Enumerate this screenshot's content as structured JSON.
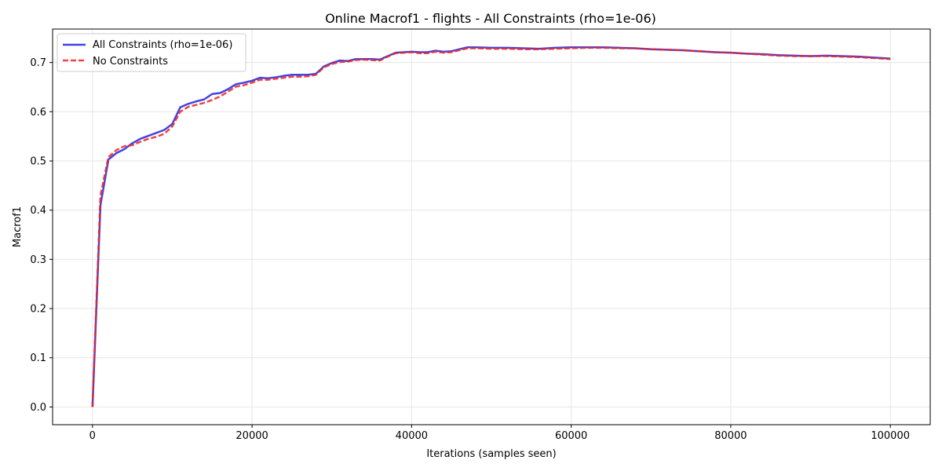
{
  "chart_data": {
    "type": "line",
    "title": "Online Macrof1 - flights - All Constraints (rho=1e-06)",
    "xlabel": "Iterations (samples seen)",
    "ylabel": "Macrof1",
    "xlim": [
      -5000,
      105000
    ],
    "ylim": [
      -0.036,
      0.768
    ],
    "xticks": [
      0,
      20000,
      40000,
      60000,
      80000,
      100000
    ],
    "xtick_labels": [
      "0",
      "20000",
      "40000",
      "60000",
      "80000",
      "100000"
    ],
    "yticks": [
      0.0,
      0.1,
      0.2,
      0.3,
      0.4,
      0.5,
      0.6,
      0.7
    ],
    "ytick_labels": [
      "0.0",
      "0.1",
      "0.2",
      "0.3",
      "0.4",
      "0.5",
      "0.6",
      "0.7"
    ],
    "grid": true,
    "legend_position": "top-left",
    "series": [
      {
        "name": "All Constraints (rho=1e-06)",
        "color": "#2222dd",
        "style": "solid",
        "x": [
          0,
          1000,
          2000,
          3000,
          4000,
          5000,
          6000,
          7000,
          8000,
          9000,
          10000,
          11000,
          12000,
          13000,
          14000,
          15000,
          16000,
          17000,
          18000,
          19000,
          20000,
          21000,
          22000,
          23000,
          24000,
          25000,
          26000,
          27000,
          28000,
          29000,
          30000,
          31000,
          32000,
          33000,
          34000,
          35000,
          36000,
          37000,
          38000,
          39000,
          40000,
          41000,
          42000,
          43000,
          44000,
          45000,
          46000,
          47000,
          48000,
          50000,
          52000,
          54000,
          56000,
          58000,
          60000,
          62000,
          64000,
          66000,
          68000,
          70000,
          72000,
          74000,
          76000,
          78000,
          80000,
          82000,
          84000,
          86000,
          88000,
          90000,
          92000,
          94000,
          96000,
          98000,
          100000
        ],
        "y": [
          0.0,
          0.41,
          0.503,
          0.516,
          0.524,
          0.536,
          0.545,
          0.551,
          0.557,
          0.563,
          0.575,
          0.609,
          0.616,
          0.621,
          0.625,
          0.636,
          0.638,
          0.646,
          0.656,
          0.659,
          0.663,
          0.669,
          0.668,
          0.67,
          0.673,
          0.675,
          0.675,
          0.675,
          0.677,
          0.692,
          0.699,
          0.704,
          0.703,
          0.707,
          0.707,
          0.707,
          0.706,
          0.713,
          0.72,
          0.721,
          0.722,
          0.721,
          0.721,
          0.724,
          0.722,
          0.723,
          0.727,
          0.731,
          0.731,
          0.73,
          0.73,
          0.729,
          0.728,
          0.73,
          0.731,
          0.731,
          0.731,
          0.73,
          0.729,
          0.727,
          0.726,
          0.725,
          0.723,
          0.721,
          0.72,
          0.718,
          0.717,
          0.715,
          0.714,
          0.713,
          0.714,
          0.713,
          0.712,
          0.71,
          0.708
        ]
      },
      {
        "name": "No Constraints",
        "color": "#ee2222",
        "style": "dashed",
        "x": [
          0,
          1000,
          2000,
          3000,
          4000,
          5000,
          6000,
          7000,
          8000,
          9000,
          10000,
          11000,
          12000,
          13000,
          14000,
          15000,
          16000,
          17000,
          18000,
          19000,
          20000,
          21000,
          22000,
          23000,
          24000,
          25000,
          26000,
          27000,
          28000,
          29000,
          30000,
          31000,
          32000,
          33000,
          34000,
          35000,
          36000,
          37000,
          38000,
          39000,
          40000,
          41000,
          42000,
          43000,
          44000,
          45000,
          46000,
          47000,
          48000,
          50000,
          52000,
          54000,
          56000,
          58000,
          60000,
          62000,
          64000,
          66000,
          68000,
          70000,
          72000,
          74000,
          76000,
          78000,
          80000,
          82000,
          84000,
          86000,
          88000,
          90000,
          92000,
          94000,
          96000,
          98000,
          100000
        ],
        "y": [
          0.0,
          0.43,
          0.508,
          0.522,
          0.53,
          0.532,
          0.539,
          0.545,
          0.549,
          0.555,
          0.57,
          0.6,
          0.61,
          0.614,
          0.618,
          0.624,
          0.631,
          0.641,
          0.651,
          0.654,
          0.659,
          0.665,
          0.665,
          0.667,
          0.669,
          0.671,
          0.671,
          0.672,
          0.675,
          0.69,
          0.697,
          0.701,
          0.702,
          0.705,
          0.706,
          0.705,
          0.704,
          0.712,
          0.719,
          0.72,
          0.721,
          0.719,
          0.719,
          0.722,
          0.72,
          0.721,
          0.725,
          0.729,
          0.729,
          0.728,
          0.728,
          0.727,
          0.727,
          0.728,
          0.729,
          0.73,
          0.73,
          0.729,
          0.729,
          0.727,
          0.726,
          0.725,
          0.723,
          0.721,
          0.72,
          0.718,
          0.716,
          0.714,
          0.713,
          0.713,
          0.713,
          0.712,
          0.711,
          0.709,
          0.707
        ]
      }
    ]
  }
}
